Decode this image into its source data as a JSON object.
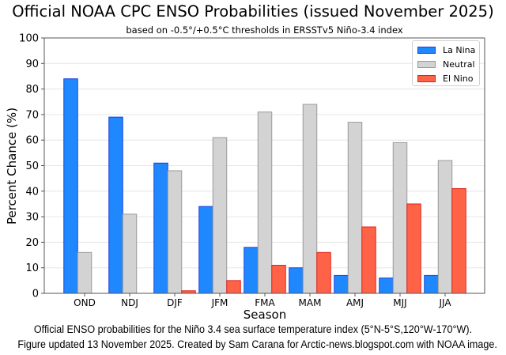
{
  "chart_data": {
    "type": "bar",
    "title": "Official NOAA CPC ENSO Probabilities (issued November 2025)",
    "subtitle": "based on -0.5°/+0.5°C thresholds in ERSSTv5 Niño-3.4 index",
    "xlabel": "Season",
    "ylabel": "Percent Chance (%)",
    "ylim": [
      0,
      100
    ],
    "yticks": [
      0,
      10,
      20,
      30,
      40,
      50,
      60,
      70,
      80,
      90,
      100
    ],
    "grid": true,
    "legend_position": "top-right",
    "categories": [
      "OND",
      "NDJ",
      "DJF",
      "JFM",
      "FMA",
      "MAM",
      "AMJ",
      "MJJ",
      "JJA"
    ],
    "series": [
      {
        "name": "La Nina",
        "color": "#1f88ff",
        "edge": "#1a3fe0",
        "values": [
          84,
          69,
          51,
          34,
          18,
          10,
          7,
          6,
          7
        ]
      },
      {
        "name": "Neutral",
        "color": "#d3d3d3",
        "edge": "#999999",
        "values": [
          16,
          31,
          48,
          61,
          71,
          74,
          67,
          59,
          52
        ]
      },
      {
        "name": "El Nino",
        "color": "#ff6347",
        "edge": "#e0201a",
        "values": [
          0,
          0,
          1,
          5,
          11,
          16,
          26,
          35,
          41
        ]
      }
    ]
  },
  "captions": {
    "line1": "Official ENSO probabilities for the Niño 3.4 sea surface temperature index (5°N-5°S,120°W-170°W).",
    "line2": "Figure updated 13 November 2025. Created by Sam Carana for Arctic-news.blogspot.com with NOAA image."
  }
}
